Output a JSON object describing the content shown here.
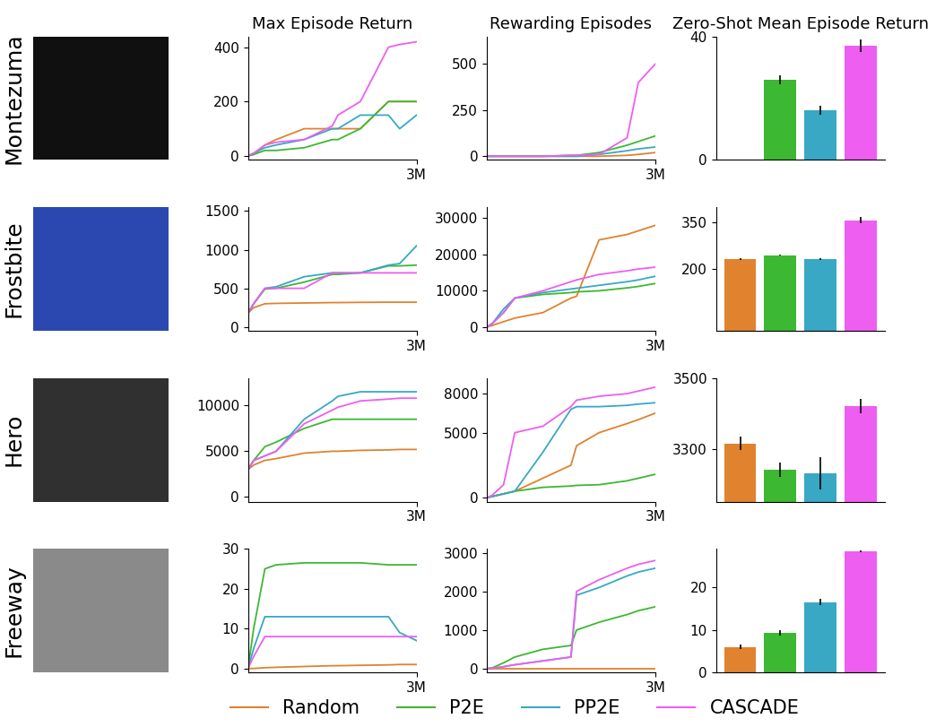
{
  "row_labels": [
    "Montezuma",
    "Frostbite",
    "Hero",
    "Freeway"
  ],
  "legend": "lower center",
  "chart_data": [
    {
      "type": "line",
      "title": "Max Episode Return",
      "x": [
        0,
        100000,
        300000,
        500000,
        1000000,
        1500000,
        1600000,
        2000000,
        2500000,
        2700000,
        3000000
      ],
      "xlim": [
        0,
        3000000
      ],
      "xticks": [
        {
          "value": 3000000,
          "label": "3M"
        }
      ],
      "ylim": [
        -15,
        440
      ],
      "yticks": [
        0,
        200,
        400
      ],
      "series": [
        {
          "name": "Random",
          "color": "#e0822e",
          "values": [
            0,
            5,
            40,
            60,
            100,
            100,
            100,
            100,
            200,
            200,
            200
          ]
        },
        {
          "name": "P2E",
          "color": "#3cb832",
          "values": [
            0,
            5,
            20,
            20,
            30,
            60,
            60,
            100,
            200,
            200,
            200
          ]
        },
        {
          "name": "PP2E",
          "color": "#38a8c4",
          "values": [
            0,
            10,
            30,
            40,
            60,
            100,
            100,
            150,
            150,
            100,
            150
          ]
        },
        {
          "name": "CASCADE",
          "color": "#ee5ef0",
          "values": [
            0,
            10,
            40,
            50,
            60,
            110,
            150,
            200,
            400,
            410,
            420
          ]
        }
      ]
    },
    {
      "type": "line",
      "title": "Rewarding Episodes",
      "x": [
        0,
        100000,
        300000,
        500000,
        1000000,
        1500000,
        1600000,
        2000000,
        2500000,
        2700000,
        3000000
      ],
      "xlim": [
        0,
        3000000
      ],
      "xticks": [
        {
          "value": 3000000,
          "label": "3M"
        }
      ],
      "ylim": [
        -20,
        650
      ],
      "yticks": [
        0,
        250,
        500
      ],
      "series": [
        {
          "name": "Random",
          "color": "#e0822e",
          "values": [
            0,
            0,
            0,
            0,
            0,
            0,
            0,
            0,
            5,
            10,
            20
          ]
        },
        {
          "name": "P2E",
          "color": "#3cb832",
          "values": [
            0,
            0,
            0,
            0,
            0,
            5,
            5,
            20,
            60,
            80,
            110
          ]
        },
        {
          "name": "PP2E",
          "color": "#38a8c4",
          "values": [
            0,
            0,
            0,
            0,
            0,
            0,
            0,
            10,
            30,
            40,
            50
          ]
        },
        {
          "name": "CASCADE",
          "color": "#ee5ef0",
          "values": [
            0,
            0,
            0,
            0,
            0,
            5,
            5,
            10,
            100,
            400,
            500
          ]
        }
      ]
    },
    {
      "type": "bar",
      "title": "Zero-Shot Mean Episode Return",
      "tick_labels": "y",
      "ylim": [
        0,
        40
      ],
      "yticks": [
        0,
        40
      ],
      "series": [
        {
          "name": "Random",
          "color": "#e0822e",
          "values": [
            0
          ],
          "errors": [
            0
          ]
        },
        {
          "name": "P2E",
          "color": "#3cb832",
          "values": [
            26
          ],
          "errors": [
            1.5
          ]
        },
        {
          "name": "PP2E",
          "color": "#38a8c4",
          "values": [
            16
          ],
          "errors": [
            1.5
          ]
        },
        {
          "name": "CASCADE",
          "color": "#ee5ef0",
          "values": [
            37
          ],
          "errors": [
            2
          ]
        }
      ]
    },
    {
      "type": "line",
      "x": [
        0,
        100000,
        300000,
        500000,
        1000000,
        1500000,
        1600000,
        2000000,
        2500000,
        2700000,
        3000000
      ],
      "xlim": [
        0,
        3000000
      ],
      "xticks": [
        {
          "value": 3000000,
          "label": "3M"
        }
      ],
      "ylim": [
        -50,
        1550
      ],
      "yticks": [
        0,
        500,
        1000,
        1500
      ],
      "series": [
        {
          "name": "Random",
          "color": "#e0822e",
          "values": [
            180,
            250,
            300,
            305,
            310,
            315,
            315,
            318,
            320,
            320,
            320
          ]
        },
        {
          "name": "P2E",
          "color": "#3cb832",
          "values": [
            180,
            300,
            490,
            500,
            580,
            680,
            680,
            700,
            790,
            790,
            800
          ]
        },
        {
          "name": "PP2E",
          "color": "#38a8c4",
          "values": [
            180,
            300,
            500,
            520,
            650,
            700,
            700,
            700,
            800,
            820,
            1050
          ]
        },
        {
          "name": "CASCADE",
          "color": "#ee5ef0",
          "values": [
            180,
            300,
            500,
            500,
            500,
            700,
            700,
            700,
            700,
            700,
            700
          ]
        }
      ]
    },
    {
      "type": "line",
      "x": [
        0,
        100000,
        300000,
        500000,
        1000000,
        1500000,
        1600000,
        2000000,
        2500000,
        2700000,
        3000000
      ],
      "xlim": [
        0,
        3000000
      ],
      "xticks": [
        {
          "value": 3000000,
          "label": "3M"
        }
      ],
      "ylim": [
        -1000,
        33000
      ],
      "yticks": [
        0,
        10000,
        20000,
        30000
      ],
      "series": [
        {
          "name": "Random",
          "color": "#e0822e",
          "values": [
            0,
            500,
            1500,
            2500,
            4000,
            8000,
            8500,
            24000,
            25500,
            26500,
            28000
          ]
        },
        {
          "name": "P2E",
          "color": "#3cb832",
          "values": [
            0,
            1000,
            4000,
            8000,
            9000,
            9500,
            9700,
            10000,
            10800,
            11200,
            12000
          ]
        },
        {
          "name": "PP2E",
          "color": "#38a8c4",
          "values": [
            0,
            1000,
            5000,
            8000,
            9500,
            10500,
            10700,
            11500,
            12500,
            13000,
            14000
          ]
        },
        {
          "name": "CASCADE",
          "color": "#ee5ef0",
          "values": [
            0,
            1000,
            4000,
            8000,
            10000,
            12500,
            13000,
            14500,
            15500,
            16000,
            16500
          ]
        }
      ]
    },
    {
      "type": "bar",
      "tick_labels": "y",
      "ylim": [
        0,
        400
      ],
      "yticks": [
        200,
        350
      ],
      "series": [
        {
          "name": "Random",
          "color": "#e0822e",
          "values": [
            232
          ],
          "errors": [
            2
          ]
        },
        {
          "name": "P2E",
          "color": "#3cb832",
          "values": [
            245
          ],
          "errors": [
            2
          ]
        },
        {
          "name": "PP2E",
          "color": "#38a8c4",
          "values": [
            232
          ],
          "errors": [
            2
          ]
        },
        {
          "name": "CASCADE",
          "color": "#ee5ef0",
          "values": [
            358
          ],
          "errors": [
            10
          ]
        }
      ]
    },
    {
      "type": "line",
      "x": [
        0,
        100000,
        300000,
        500000,
        1000000,
        1500000,
        1600000,
        2000000,
        2500000,
        2700000,
        3000000
      ],
      "xlim": [
        0,
        3000000
      ],
      "xticks": [
        {
          "value": 3000000,
          "label": "3M"
        }
      ],
      "ylim": [
        -500,
        13000
      ],
      "yticks": [
        0,
        5000,
        10000
      ],
      "series": [
        {
          "name": "Random",
          "color": "#e0822e",
          "values": [
            3000,
            3500,
            4000,
            4200,
            4800,
            5000,
            5000,
            5100,
            5150,
            5200,
            5200
          ]
        },
        {
          "name": "P2E",
          "color": "#3cb832",
          "values": [
            3000,
            4000,
            5500,
            6000,
            7500,
            8500,
            8500,
            8500,
            8500,
            8500,
            8500
          ]
        },
        {
          "name": "PP2E",
          "color": "#38a8c4",
          "values": [
            3000,
            4000,
            4500,
            5000,
            8500,
            10500,
            11000,
            11500,
            11500,
            11500,
            11500
          ]
        },
        {
          "name": "CASCADE",
          "color": "#ee5ef0",
          "values": [
            3000,
            4000,
            4500,
            5000,
            8000,
            9500,
            9800,
            10500,
            10700,
            10800,
            10800
          ]
        }
      ]
    },
    {
      "type": "line",
      "x": [
        0,
        100000,
        300000,
        500000,
        1000000,
        1500000,
        1600000,
        2000000,
        2500000,
        2700000,
        3000000
      ],
      "xlim": [
        0,
        3000000
      ],
      "xticks": [
        {
          "value": 3000000,
          "label": "3M"
        }
      ],
      "ylim": [
        -300,
        9200
      ],
      "yticks": [
        0,
        5000,
        8000
      ],
      "series": [
        {
          "name": "Random",
          "color": "#e0822e",
          "values": [
            0,
            100,
            300,
            500,
            1500,
            2500,
            4000,
            5000,
            5700,
            6000,
            6500
          ]
        },
        {
          "name": "P2E",
          "color": "#3cb832",
          "values": [
            0,
            100,
            300,
            500,
            800,
            900,
            950,
            1000,
            1300,
            1500,
            1800
          ]
        },
        {
          "name": "PP2E",
          "color": "#38a8c4",
          "values": [
            0,
            100,
            300,
            500,
            3500,
            6800,
            7000,
            7000,
            7100,
            7200,
            7300
          ]
        },
        {
          "name": "CASCADE",
          "color": "#ee5ef0",
          "values": [
            0,
            200,
            1000,
            5000,
            5500,
            7000,
            7500,
            7800,
            8000,
            8200,
            8500
          ]
        }
      ]
    },
    {
      "type": "bar",
      "tick_labels": "y",
      "ylim": [
        3150,
        3500
      ],
      "yticks": [
        3300,
        3500
      ],
      "series": [
        {
          "name": "Random",
          "color": "#e0822e",
          "values": [
            3315
          ],
          "errors": [
            20
          ]
        },
        {
          "name": "P2E",
          "color": "#3cb832",
          "values": [
            3240
          ],
          "errors": [
            20
          ]
        },
        {
          "name": "PP2E",
          "color": "#38a8c4",
          "values": [
            3230
          ],
          "errors": [
            45
          ]
        },
        {
          "name": "CASCADE",
          "color": "#ee5ef0",
          "values": [
            3420
          ],
          "errors": [
            20
          ]
        }
      ]
    },
    {
      "type": "line",
      "x": [
        0,
        100000,
        300000,
        500000,
        1000000,
        1500000,
        1600000,
        2000000,
        2500000,
        2700000,
        3000000
      ],
      "xlim": [
        0,
        3000000
      ],
      "xticks": [
        {
          "value": 3000000,
          "label": "3M"
        }
      ],
      "ylim": [
        -1,
        30
      ],
      "yticks": [
        0,
        10,
        20,
        30
      ],
      "series": [
        {
          "name": "Random",
          "color": "#e0822e",
          "values": [
            0,
            0,
            0.2,
            0.3,
            0.5,
            0.7,
            0.7,
            0.8,
            0.9,
            1,
            1
          ]
        },
        {
          "name": "P2E",
          "color": "#3cb832",
          "values": [
            0,
            10,
            25,
            26,
            26.5,
            26.5,
            26.5,
            26.5,
            26,
            26,
            26
          ]
        },
        {
          "name": "PP2E",
          "color": "#38a8c4",
          "values": [
            0,
            5,
            13,
            13,
            13,
            13,
            13,
            13,
            13,
            9,
            7
          ]
        },
        {
          "name": "CASCADE",
          "color": "#ee5ef0",
          "values": [
            0,
            3,
            8,
            8,
            8,
            8,
            8,
            8,
            8,
            8,
            8
          ]
        }
      ]
    },
    {
      "type": "line",
      "x": [
        0,
        100000,
        300000,
        500000,
        1000000,
        1500000,
        1600000,
        2000000,
        2500000,
        2700000,
        3000000
      ],
      "xlim": [
        0,
        3000000
      ],
      "xticks": [
        {
          "value": 3000000,
          "label": "3M"
        }
      ],
      "ylim": [
        -100,
        3100
      ],
      "yticks": [
        0,
        1000,
        2000,
        3000
      ],
      "series": [
        {
          "name": "Random",
          "color": "#e0822e",
          "values": [
            0,
            0,
            0,
            0,
            0,
            0,
            0,
            0,
            0,
            0,
            0
          ]
        },
        {
          "name": "P2E",
          "color": "#3cb832",
          "values": [
            0,
            20,
            150,
            300,
            500,
            600,
            1000,
            1200,
            1400,
            1500,
            1600
          ]
        },
        {
          "name": "PP2E",
          "color": "#38a8c4",
          "values": [
            0,
            10,
            50,
            100,
            200,
            300,
            1900,
            2100,
            2400,
            2500,
            2600
          ]
        },
        {
          "name": "CASCADE",
          "color": "#ee5ef0",
          "values": [
            0,
            10,
            50,
            100,
            200,
            300,
            2000,
            2300,
            2600,
            2700,
            2800
          ]
        }
      ]
    },
    {
      "type": "bar",
      "tick_labels": "y",
      "ylim": [
        0,
        29
      ],
      "yticks": [
        0,
        10,
        20
      ],
      "series": [
        {
          "name": "Random",
          "color": "#e0822e",
          "values": [
            6
          ],
          "errors": [
            0.5
          ]
        },
        {
          "name": "P2E",
          "color": "#3cb832",
          "values": [
            9.3
          ],
          "errors": [
            0.6
          ]
        },
        {
          "name": "PP2E",
          "color": "#38a8c4",
          "values": [
            16.5
          ],
          "errors": [
            0.7
          ]
        },
        {
          "name": "CASCADE",
          "color": "#ee5ef0",
          "values": [
            28.5
          ],
          "errors": [
            0.2
          ]
        }
      ]
    }
  ]
}
